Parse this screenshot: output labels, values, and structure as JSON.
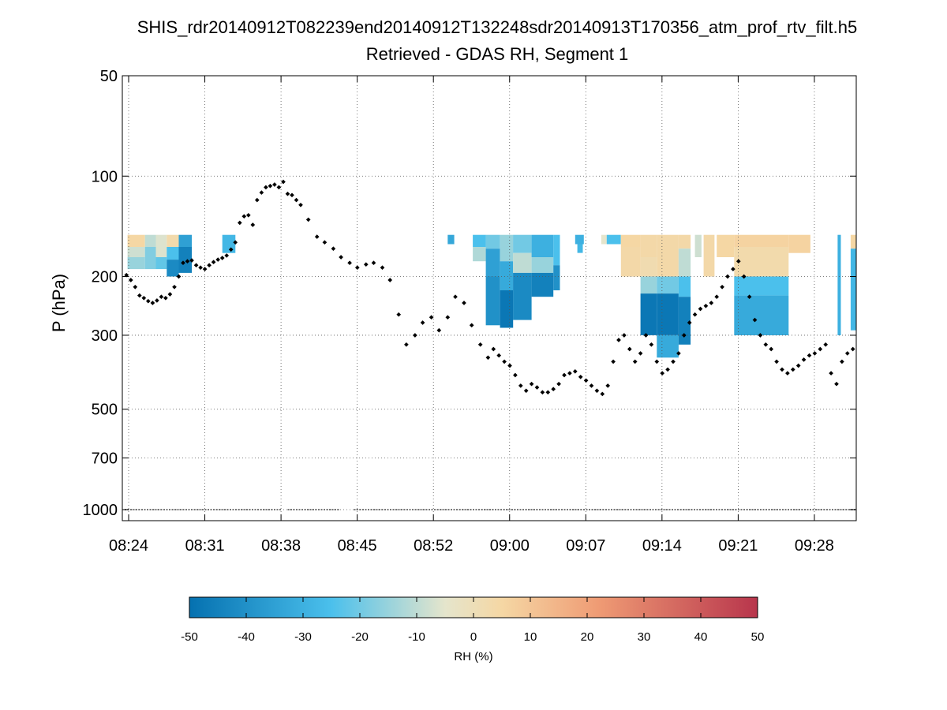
{
  "chart_data": {
    "type": "heatmap",
    "title": "SHIS_rdr20140912T082239end20140912T132248sdr20140913T170356_atm_prof_rtv_filt.h5",
    "subtitle": "Retrieved - GDAS RH, Segment 1",
    "ylabel": "P (hPa)",
    "y_scale": "log",
    "y_reversed": true,
    "ylim": [
      50,
      1050
    ],
    "yticks": [
      50,
      100,
      200,
      300,
      500,
      700,
      1000
    ],
    "xticks": [
      "08:24",
      "08:31",
      "08:38",
      "08:45",
      "08:52",
      "09:00",
      "09:07",
      "09:14",
      "09:21",
      "09:28"
    ],
    "x_range_minutes": [
      503.6,
      572.6
    ],
    "grid": true,
    "colorbar": {
      "label": "RH (%)",
      "range": [
        -50,
        50
      ],
      "ticks": [
        "-50",
        "-40",
        "-30",
        "-20",
        "-10",
        "0",
        "10",
        "20",
        "30",
        "40",
        "50"
      ],
      "placement": "bottom",
      "colors": [
        "#0571b0",
        "#4bc0ec",
        "#e5e5cc",
        "#f5d7a4",
        "#ef9b74",
        "#b8354c"
      ]
    },
    "rh_diff_cells": [
      {
        "t0": 503.9,
        "t1": 505.5,
        "p0": 150,
        "p1": 163,
        "v": 5
      },
      {
        "t0": 503.9,
        "t1": 505.5,
        "p0": 163,
        "p1": 175,
        "v": -8
      },
      {
        "t0": 503.9,
        "t1": 505.5,
        "p0": 175,
        "p1": 190,
        "v": -15
      },
      {
        "t0": 505.5,
        "t1": 506.5,
        "p0": 150,
        "p1": 163,
        "v": -10
      },
      {
        "t0": 505.5,
        "t1": 506.5,
        "p0": 163,
        "p1": 190,
        "v": -18
      },
      {
        "t0": 506.5,
        "t1": 507.5,
        "p0": 150,
        "p1": 175,
        "v": -6
      },
      {
        "t0": 506.5,
        "t1": 507.5,
        "p0": 175,
        "p1": 190,
        "v": -22
      },
      {
        "t0": 507.5,
        "t1": 508.6,
        "p0": 150,
        "p1": 163,
        "v": 3
      },
      {
        "t0": 507.5,
        "t1": 508.6,
        "p0": 163,
        "p1": 178,
        "v": -25
      },
      {
        "t0": 507.5,
        "t1": 508.6,
        "p0": 178,
        "p1": 200,
        "v": -42
      },
      {
        "t0": 508.6,
        "t1": 509.8,
        "p0": 150,
        "p1": 163,
        "v": -35
      },
      {
        "t0": 508.6,
        "t1": 509.8,
        "p0": 163,
        "p1": 195,
        "v": -45
      },
      {
        "t0": 512.6,
        "t1": 513.8,
        "p0": 150,
        "p1": 170,
        "v": -28
      },
      {
        "t0": 533.3,
        "t1": 533.9,
        "p0": 150,
        "p1": 160,
        "v": -33
      },
      {
        "t0": 535.6,
        "t1": 536.8,
        "p0": 150,
        "p1": 163,
        "v": -25
      },
      {
        "t0": 535.6,
        "t1": 536.8,
        "p0": 163,
        "p1": 180,
        "v": -12
      },
      {
        "t0": 536.8,
        "t1": 538.1,
        "p0": 150,
        "p1": 165,
        "v": -20
      },
      {
        "t0": 536.8,
        "t1": 538.1,
        "p0": 165,
        "p1": 200,
        "v": -35
      },
      {
        "t0": 536.8,
        "t1": 538.1,
        "p0": 200,
        "p1": 280,
        "v": -40
      },
      {
        "t0": 538.1,
        "t1": 539.3,
        "p0": 150,
        "p1": 180,
        "v": -15
      },
      {
        "t0": 538.1,
        "t1": 539.3,
        "p0": 180,
        "p1": 220,
        "v": -32
      },
      {
        "t0": 538.1,
        "t1": 539.3,
        "p0": 220,
        "p1": 285,
        "v": -48
      },
      {
        "t0": 539.3,
        "t1": 541.0,
        "p0": 150,
        "p1": 170,
        "v": -20
      },
      {
        "t0": 539.3,
        "t1": 541.0,
        "p0": 170,
        "p1": 195,
        "v": -10
      },
      {
        "t0": 539.3,
        "t1": 541.0,
        "p0": 195,
        "p1": 270,
        "v": -42
      },
      {
        "t0": 541.0,
        "t1": 543.0,
        "p0": 150,
        "p1": 175,
        "v": -30
      },
      {
        "t0": 541.0,
        "t1": 543.0,
        "p0": 175,
        "p1": 195,
        "v": -15
      },
      {
        "t0": 541.0,
        "t1": 543.0,
        "p0": 195,
        "p1": 230,
        "v": -45
      },
      {
        "t0": 543.0,
        "t1": 543.6,
        "p0": 150,
        "p1": 185,
        "v": -25
      },
      {
        "t0": 543.0,
        "t1": 543.6,
        "p0": 185,
        "p1": 220,
        "v": -40
      },
      {
        "t0": 545.0,
        "t1": 545.8,
        "p0": 150,
        "p1": 160,
        "v": -30
      },
      {
        "t0": 545.2,
        "t1": 545.7,
        "p0": 160,
        "p1": 170,
        "v": -28
      },
      {
        "t0": 547.4,
        "t1": 547.9,
        "p0": 150,
        "p1": 160,
        "v": -5
      },
      {
        "t0": 547.9,
        "t1": 549.2,
        "p0": 150,
        "p1": 160,
        "v": -25
      },
      {
        "t0": 549.2,
        "t1": 551.0,
        "p0": 150,
        "p1": 163,
        "v": 5
      },
      {
        "t0": 549.2,
        "t1": 551.0,
        "p0": 163,
        "p1": 200,
        "v": 4
      },
      {
        "t0": 551.0,
        "t1": 552.5,
        "p0": 150,
        "p1": 175,
        "v": 4
      },
      {
        "t0": 551.0,
        "t1": 552.5,
        "p0": 175,
        "p1": 200,
        "v": 2
      },
      {
        "t0": 551.0,
        "t1": 552.5,
        "p0": 200,
        "p1": 225,
        "v": -15
      },
      {
        "t0": 551.0,
        "t1": 552.5,
        "p0": 225,
        "p1": 300,
        "v": -48
      },
      {
        "t0": 552.5,
        "t1": 554.5,
        "p0": 150,
        "p1": 200,
        "v": 4
      },
      {
        "t0": 552.5,
        "t1": 554.5,
        "p0": 200,
        "p1": 225,
        "v": -20
      },
      {
        "t0": 552.5,
        "t1": 554.5,
        "p0": 225,
        "p1": 300,
        "v": -48
      },
      {
        "t0": 552.5,
        "t1": 554.5,
        "p0": 300,
        "p1": 350,
        "v": -32
      },
      {
        "t0": 554.5,
        "t1": 555.6,
        "p0": 150,
        "p1": 165,
        "v": 4
      },
      {
        "t0": 554.5,
        "t1": 555.6,
        "p0": 165,
        "p1": 200,
        "v": -10
      },
      {
        "t0": 554.5,
        "t1": 555.6,
        "p0": 200,
        "p1": 230,
        "v": -25
      },
      {
        "t0": 554.5,
        "t1": 555.6,
        "p0": 230,
        "p1": 320,
        "v": -45
      },
      {
        "t0": 556.0,
        "t1": 556.6,
        "p0": 150,
        "p1": 175,
        "v": -8
      },
      {
        "t0": 556.8,
        "t1": 557.8,
        "p0": 150,
        "p1": 200,
        "v": 4
      },
      {
        "t0": 558.0,
        "t1": 559.6,
        "p0": 150,
        "p1": 175,
        "v": 5
      },
      {
        "t0": 559.6,
        "t1": 564.6,
        "p0": 150,
        "p1": 163,
        "v": 6
      },
      {
        "t0": 559.6,
        "t1": 564.6,
        "p0": 163,
        "p1": 200,
        "v": 3
      },
      {
        "t0": 559.6,
        "t1": 564.6,
        "p0": 200,
        "p1": 228,
        "v": -25
      },
      {
        "t0": 559.6,
        "t1": 564.6,
        "p0": 228,
        "p1": 300,
        "v": -32
      },
      {
        "t0": 564.6,
        "t1": 566.6,
        "p0": 150,
        "p1": 170,
        "v": 6
      },
      {
        "t0": 569.1,
        "t1": 569.4,
        "p0": 150,
        "p1": 300,
        "v": -30
      },
      {
        "t0": 570.3,
        "t1": 570.8,
        "p0": 150,
        "p1": 165,
        "v": 5
      },
      {
        "t0": 570.3,
        "t1": 570.8,
        "p0": 165,
        "p1": 290,
        "v": -28
      }
    ],
    "tropopause_series": {
      "x_minutes": [
        503.8,
        504.2,
        504.6,
        505.0,
        505.4,
        505.8,
        506.2,
        506.6,
        507.0,
        507.4,
        507.8,
        508.2,
        508.6,
        509.0,
        509.4,
        509.8,
        510.2,
        510.6,
        511.0,
        511.4,
        511.8,
        512.2,
        512.6,
        513.0,
        513.4,
        513.8,
        514.2,
        514.6,
        515.0,
        515.4,
        515.8,
        516.2,
        516.6,
        517.0,
        517.4,
        517.8,
        518.2,
        518.6,
        519.0,
        519.4,
        519.8,
        520.5,
        521.3,
        522.0,
        522.8,
        523.5,
        524.3,
        525.0,
        525.8,
        526.5,
        527.3,
        528.0,
        528.8,
        529.5,
        530.3,
        531.0,
        531.8,
        532.5,
        533.3,
        534.0,
        534.8,
        535.5,
        536.3,
        537.0,
        537.5,
        538.0,
        538.5,
        539.0,
        539.5,
        540.0,
        540.5,
        541.0,
        541.5,
        542.0,
        542.5,
        543.0,
        543.5,
        544.0,
        544.5,
        545.0,
        545.5,
        546.0,
        546.5,
        547.0,
        547.5,
        548.0,
        548.5,
        549.0,
        549.5,
        550.0,
        550.5,
        551.0,
        551.5,
        552.0,
        552.5,
        553.0,
        553.5,
        554.0,
        554.5,
        555.0,
        555.5,
        556.0,
        556.5,
        557.0,
        557.5,
        558.0,
        558.5,
        559.0,
        559.5,
        560.0,
        560.5,
        561.0,
        561.5,
        562.0,
        562.5,
        563.0,
        563.5,
        564.0,
        564.5,
        565.0,
        565.5,
        566.0,
        566.5,
        567.0,
        567.5,
        568.0,
        568.5,
        569.0,
        569.5,
        570.0,
        570.5,
        571.0,
        571.5,
        572.0,
        572.5
      ],
      "p_hpa": [
        198,
        205,
        215,
        228,
        232,
        237,
        240,
        236,
        230,
        232,
        226,
        215,
        200,
        182,
        180,
        179,
        185,
        188,
        190,
        185,
        181,
        178,
        176,
        173,
        166,
        158,
        138,
        132,
        131,
        140,
        118,
        112,
        108,
        107,
        106,
        108,
        104,
        113,
        114,
        118,
        122,
        135,
        152,
        158,
        165,
        175,
        182,
        188,
        184,
        182,
        188,
        205,
        260,
        320,
        300,
        275,
        265,
        290,
        265,
        230,
        240,
        280,
        320,
        350,
        330,
        345,
        360,
        370,
        395,
        425,
        440,
        420,
        430,
        445,
        445,
        435,
        420,
        395,
        390,
        385,
        400,
        410,
        425,
        440,
        450,
        425,
        360,
        310,
        300,
        330,
        360,
        340,
        300,
        320,
        360,
        390,
        380,
        360,
        340,
        300,
        275,
        260,
        250,
        245,
        240,
        230,
        215,
        200,
        190,
        180,
        200,
        230,
        270,
        300,
        320,
        330,
        360,
        380,
        390,
        380,
        370,
        355,
        345,
        340,
        330,
        320,
        390,
        420,
        360,
        340,
        330,
        325,
        320
      ]
    },
    "surface_pressure_hpa": 1000
  }
}
